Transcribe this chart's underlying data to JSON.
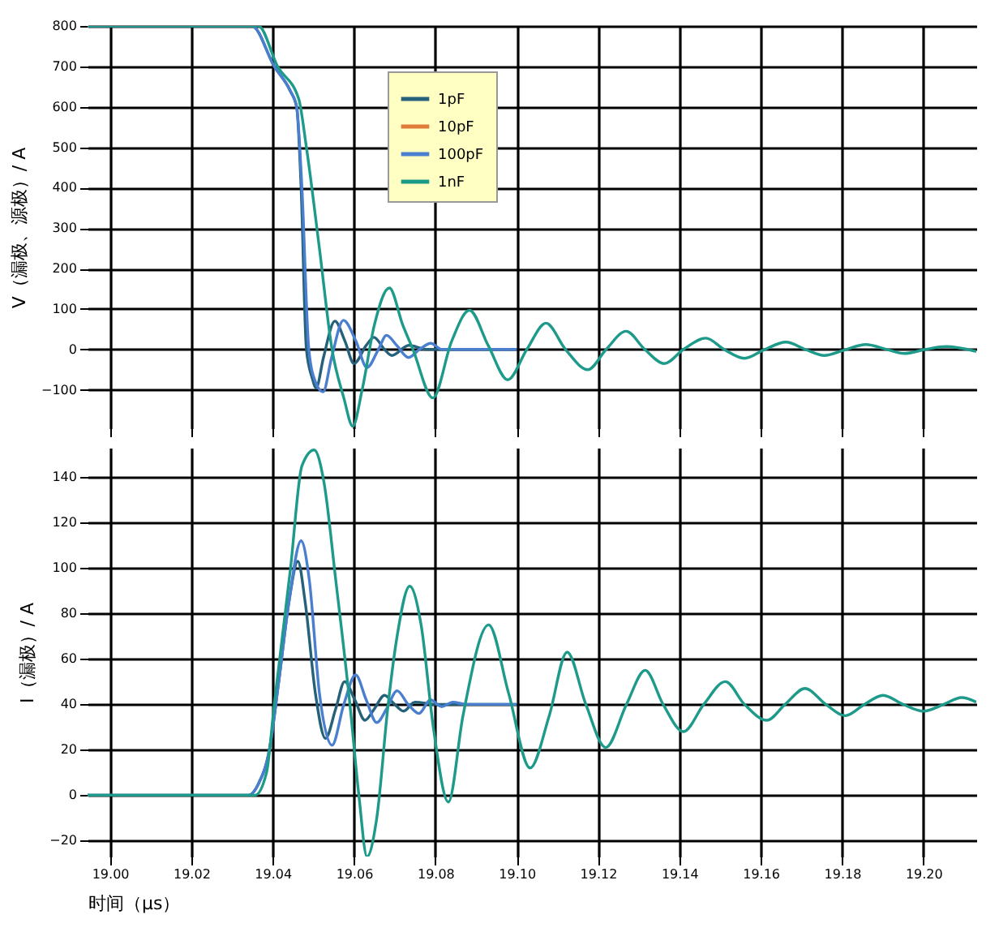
{
  "chart_data": [
    {
      "type": "line",
      "ylabel": "V（漏极、源极）/ A",
      "xlim": [
        18.9945,
        19.213
      ],
      "ylim": [
        -195,
        800
      ],
      "xticks": [
        {
          "value": 19.0,
          "label": null
        },
        {
          "value": 19.02,
          "label": null
        },
        {
          "value": 19.04,
          "label": null
        },
        {
          "value": 19.06,
          "label": null
        },
        {
          "value": 19.08,
          "label": null
        },
        {
          "value": 19.1,
          "label": null
        },
        {
          "value": 19.12,
          "label": null
        },
        {
          "value": 19.14,
          "label": null
        },
        {
          "value": 19.16,
          "label": null
        },
        {
          "value": 19.18,
          "label": null
        },
        {
          "value": 19.2,
          "label": null
        }
      ],
      "yticks": [
        -100,
        0,
        100,
        200,
        300,
        400,
        500,
        600,
        700,
        800
      ],
      "tick_labels": "y",
      "grid": true,
      "legend": "top",
      "series": [
        {
          "name": "1pF",
          "color": "#25617a",
          "x": [
            18.9945,
            19.0349,
            19.0404,
            19.0443,
            19.0459,
            19.047,
            19.0483,
            19.0497,
            19.0507,
            19.0525,
            19.0553,
            19.0578,
            19.06,
            19.063,
            19.0649,
            19.0675,
            19.0693,
            19.0735,
            19.078,
            19.085,
            19.1
          ],
          "values": [
            800,
            800,
            700,
            640,
            600,
            400,
            0,
            -70,
            -95,
            -20,
            70,
            20,
            -35,
            10,
            30,
            0,
            -15,
            10,
            0,
            0,
            0
          ]
        },
        {
          "name": "10pF",
          "color": "#e07b39"
        },
        {
          "name": "100pF",
          "color": "#4a7fd0",
          "x": [
            18.9945,
            19.0349,
            19.0404,
            19.0443,
            19.0459,
            19.0472,
            19.0489,
            19.0505,
            19.0524,
            19.0545,
            19.0574,
            19.0605,
            19.0632,
            19.066,
            19.068,
            19.0705,
            19.0734,
            19.0761,
            19.0789,
            19.0816,
            19.088,
            19.1
          ],
          "values": [
            800,
            800,
            700,
            640,
            600,
            400,
            0,
            -80,
            -105,
            -20,
            72,
            20,
            -45,
            0,
            35,
            10,
            -20,
            0,
            15,
            0,
            0,
            0
          ]
        },
        {
          "name": "1nF",
          "color": "#1e9a8a",
          "x": [
            18.9945,
            19.0365,
            19.0412,
            19.0464,
            19.0483,
            19.0515,
            19.0546,
            19.0575,
            19.0597,
            19.062,
            19.065,
            19.0687,
            19.072,
            19.0745,
            19.0794,
            19.084,
            19.0884,
            19.093,
            19.0978,
            19.1025,
            19.1072,
            19.112,
            19.1175,
            19.122,
            19.1269,
            19.1315,
            19.1363,
            19.141,
            19.1465,
            19.151,
            19.156,
            19.161,
            19.1662,
            19.171,
            19.1756,
            19.181,
            19.1858,
            19.191,
            19.1953,
            19.2005,
            19.2055,
            19.213
          ],
          "values": [
            800,
            800,
            700,
            620,
            500,
            250,
            0,
            -120,
            -190,
            -100,
            60,
            152,
            60,
            0,
            -120,
            20,
            97,
            10,
            -75,
            0,
            65,
            0,
            -50,
            0,
            45,
            0,
            -35,
            0,
            28,
            0,
            -22,
            0,
            18,
            0,
            -15,
            0,
            12,
            0,
            -10,
            0,
            7,
            -5
          ]
        }
      ]
    },
    {
      "type": "line",
      "xlabel": "时间（μs）",
      "ylabel": "I（漏极）/ A",
      "xlim": [
        18.9945,
        19.213
      ],
      "ylim": [
        -27,
        153
      ],
      "xticks": [
        {
          "value": 19.0,
          "label": "19.00"
        },
        {
          "value": 19.02,
          "label": "19.02"
        },
        {
          "value": 19.04,
          "label": "19.04"
        },
        {
          "value": 19.06,
          "label": "19.06"
        },
        {
          "value": 19.08,
          "label": "19.08"
        },
        {
          "value": 19.1,
          "label": "19.10"
        },
        {
          "value": 19.12,
          "label": "19.12"
        },
        {
          "value": 19.14,
          "label": "19.14"
        },
        {
          "value": 19.16,
          "label": "19.16"
        },
        {
          "value": 19.18,
          "label": "19.18"
        },
        {
          "value": 19.2,
          "label": "19.20"
        }
      ],
      "yticks": [
        -20,
        0,
        20,
        40,
        60,
        80,
        100,
        120,
        140
      ],
      "grid": true,
      "series": [
        {
          "color": "#25617a",
          "x": [
            18.9945,
            19.0341,
            19.0365,
            19.0392,
            19.0415,
            19.044,
            19.0462,
            19.048,
            19.0505,
            19.053,
            19.0555,
            19.0577,
            19.0602,
            19.0627,
            19.065,
            19.0675,
            19.07,
            19.0722,
            19.075,
            19.08,
            19.09,
            19.1
          ],
          "values": [
            0,
            0,
            5,
            20,
            50,
            85,
            103,
            85,
            45,
            25,
            38,
            50,
            42,
            33,
            38,
            44,
            40,
            37,
            41,
            40,
            40,
            40
          ]
        },
        {
          "color": "#4a7fd0",
          "x": [
            18.9945,
            19.0341,
            19.0365,
            19.0392,
            19.0415,
            19.044,
            19.047,
            19.049,
            19.0515,
            19.0546,
            19.0575,
            19.0604,
            19.063,
            19.0656,
            19.068,
            19.0706,
            19.0733,
            19.076,
            19.0788,
            19.0816,
            19.0843,
            19.0875,
            19.1
          ],
          "values": [
            0,
            0,
            5,
            20,
            50,
            85,
            112,
            95,
            45,
            22,
            40,
            53,
            42,
            32,
            38,
            46,
            40,
            36,
            42,
            39,
            41,
            40,
            40
          ]
        },
        {
          "color": "#1e9a8a",
          "x": [
            18.9945,
            19.0357,
            19.0385,
            19.0404,
            19.0444,
            19.0472,
            19.0502,
            19.0526,
            19.0555,
            19.059,
            19.0612,
            19.0632,
            19.0656,
            19.0684,
            19.0706,
            19.0737,
            19.0765,
            19.0795,
            19.0832,
            19.0868,
            19.0931,
            19.098,
            19.1033,
            19.108,
            19.1124,
            19.117,
            19.1219,
            19.127,
            19.1316,
            19.136,
            19.141,
            19.146,
            19.1513,
            19.156,
            19.1615,
            19.166,
            19.1709,
            19.176,
            19.1808,
            19.1855,
            19.1901,
            19.195,
            19.2,
            19.205,
            19.2094,
            19.213
          ],
          "values": [
            0,
            0,
            10,
            40,
            100,
            145,
            152,
            138,
            95,
            40,
            0,
            -27,
            -10,
            40,
            70,
            92,
            75,
            30,
            -3,
            35,
            75,
            45,
            12,
            35,
            63,
            40,
            21,
            40,
            55,
            40,
            28,
            40,
            50,
            40,
            33,
            40,
            47,
            40,
            35,
            40,
            44,
            40,
            37,
            40,
            43,
            41
          ]
        }
      ]
    }
  ]
}
